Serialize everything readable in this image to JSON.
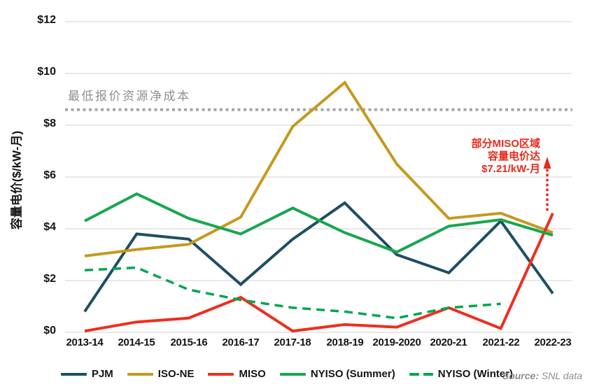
{
  "chart_data": {
    "type": "line",
    "title": "",
    "ylabel": "容量电价($/kW-月)",
    "xlabel": "",
    "ylim": [
      0,
      12
    ],
    "grid": true,
    "legend_position": "bottom",
    "y_tick_labels": [
      "$12",
      "$10",
      "$8",
      "$6",
      "$4",
      "$2",
      "$0"
    ],
    "categories": [
      "2013-14",
      "2014-15",
      "2015-16",
      "2016-17",
      "2017-18",
      "2018-19",
      "2019-2020",
      "2020-21",
      "2021-22",
      "2022-23"
    ],
    "series": [
      {
        "name": "PJM",
        "color": "#1f4e63",
        "style": "solid",
        "values": [
          0.8,
          3.8,
          3.6,
          1.85,
          3.6,
          5.0,
          3.0,
          2.3,
          4.3,
          1.5
        ]
      },
      {
        "name": "ISO-NE",
        "color": "#c49a1f",
        "style": "solid",
        "values": [
          2.95,
          3.2,
          3.4,
          4.45,
          7.95,
          9.65,
          6.5,
          4.4,
          4.6,
          3.85
        ]
      },
      {
        "name": "MISO",
        "color": "#ee2e1e",
        "style": "solid",
        "values": [
          0.05,
          0.4,
          0.55,
          1.35,
          0.05,
          0.3,
          0.2,
          0.95,
          0.15,
          4.6
        ]
      },
      {
        "name": "NYISO (Summer)",
        "color": "#17a74f",
        "style": "solid",
        "values": [
          4.3,
          5.35,
          4.4,
          3.8,
          4.8,
          3.85,
          3.1,
          4.1,
          4.35,
          3.75
        ]
      },
      {
        "name": "NYISO (Winter)",
        "color": "#00a651",
        "style": "dashed",
        "values": [
          2.4,
          2.5,
          1.65,
          1.25,
          0.95,
          0.8,
          0.55,
          0.95,
          1.1,
          null
        ]
      }
    ],
    "threshold": {
      "label": "最低报价资源净成本",
      "value": 8.6,
      "color": "#a6a6a6"
    },
    "annotation": {
      "lines": [
        "部分MISO区域",
        "容量电价达",
        "$7.21/kW-月"
      ],
      "color": "#e8291c",
      "arrow_from": 4.7,
      "arrow_to": 6.35
    },
    "source_prefix": "Source:",
    "source_text": "SNL data"
  }
}
